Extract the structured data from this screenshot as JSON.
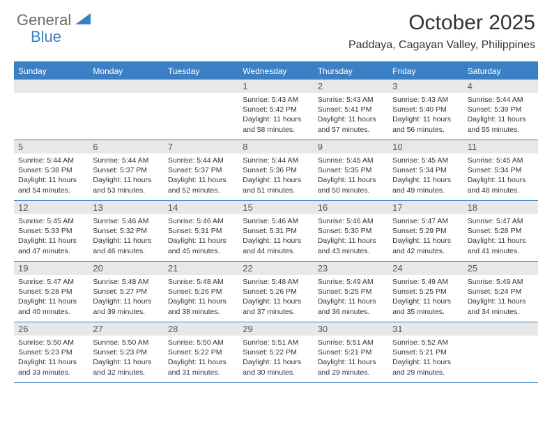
{
  "logo": {
    "text1": "General",
    "text2": "Blue"
  },
  "title": "October 2025",
  "location": "Paddaya, Cagayan Valley, Philippines",
  "colors": {
    "accent": "#3b7fc4",
    "header_text": "#ffffff",
    "date_bg": "#e8e8e8",
    "text": "#333333",
    "logo_gray": "#6b6b6b"
  },
  "day_names": [
    "Sunday",
    "Monday",
    "Tuesday",
    "Wednesday",
    "Thursday",
    "Friday",
    "Saturday"
  ],
  "weeks": [
    [
      null,
      null,
      null,
      {
        "d": "1",
        "sr": "5:43 AM",
        "ss": "5:42 PM",
        "dl": "11 hours and 58 minutes."
      },
      {
        "d": "2",
        "sr": "5:43 AM",
        "ss": "5:41 PM",
        "dl": "11 hours and 57 minutes."
      },
      {
        "d": "3",
        "sr": "5:43 AM",
        "ss": "5:40 PM",
        "dl": "11 hours and 56 minutes."
      },
      {
        "d": "4",
        "sr": "5:44 AM",
        "ss": "5:39 PM",
        "dl": "11 hours and 55 minutes."
      }
    ],
    [
      {
        "d": "5",
        "sr": "5:44 AM",
        "ss": "5:38 PM",
        "dl": "11 hours and 54 minutes."
      },
      {
        "d": "6",
        "sr": "5:44 AM",
        "ss": "5:37 PM",
        "dl": "11 hours and 53 minutes."
      },
      {
        "d": "7",
        "sr": "5:44 AM",
        "ss": "5:37 PM",
        "dl": "11 hours and 52 minutes."
      },
      {
        "d": "8",
        "sr": "5:44 AM",
        "ss": "5:36 PM",
        "dl": "11 hours and 51 minutes."
      },
      {
        "d": "9",
        "sr": "5:45 AM",
        "ss": "5:35 PM",
        "dl": "11 hours and 50 minutes."
      },
      {
        "d": "10",
        "sr": "5:45 AM",
        "ss": "5:34 PM",
        "dl": "11 hours and 49 minutes."
      },
      {
        "d": "11",
        "sr": "5:45 AM",
        "ss": "5:34 PM",
        "dl": "11 hours and 48 minutes."
      }
    ],
    [
      {
        "d": "12",
        "sr": "5:45 AM",
        "ss": "5:33 PM",
        "dl": "11 hours and 47 minutes."
      },
      {
        "d": "13",
        "sr": "5:46 AM",
        "ss": "5:32 PM",
        "dl": "11 hours and 46 minutes."
      },
      {
        "d": "14",
        "sr": "5:46 AM",
        "ss": "5:31 PM",
        "dl": "11 hours and 45 minutes."
      },
      {
        "d": "15",
        "sr": "5:46 AM",
        "ss": "5:31 PM",
        "dl": "11 hours and 44 minutes."
      },
      {
        "d": "16",
        "sr": "5:46 AM",
        "ss": "5:30 PM",
        "dl": "11 hours and 43 minutes."
      },
      {
        "d": "17",
        "sr": "5:47 AM",
        "ss": "5:29 PM",
        "dl": "11 hours and 42 minutes."
      },
      {
        "d": "18",
        "sr": "5:47 AM",
        "ss": "5:28 PM",
        "dl": "11 hours and 41 minutes."
      }
    ],
    [
      {
        "d": "19",
        "sr": "5:47 AM",
        "ss": "5:28 PM",
        "dl": "11 hours and 40 minutes."
      },
      {
        "d": "20",
        "sr": "5:48 AM",
        "ss": "5:27 PM",
        "dl": "11 hours and 39 minutes."
      },
      {
        "d": "21",
        "sr": "5:48 AM",
        "ss": "5:26 PM",
        "dl": "11 hours and 38 minutes."
      },
      {
        "d": "22",
        "sr": "5:48 AM",
        "ss": "5:26 PM",
        "dl": "11 hours and 37 minutes."
      },
      {
        "d": "23",
        "sr": "5:49 AM",
        "ss": "5:25 PM",
        "dl": "11 hours and 36 minutes."
      },
      {
        "d": "24",
        "sr": "5:49 AM",
        "ss": "5:25 PM",
        "dl": "11 hours and 35 minutes."
      },
      {
        "d": "25",
        "sr": "5:49 AM",
        "ss": "5:24 PM",
        "dl": "11 hours and 34 minutes."
      }
    ],
    [
      {
        "d": "26",
        "sr": "5:50 AM",
        "ss": "5:23 PM",
        "dl": "11 hours and 33 minutes."
      },
      {
        "d": "27",
        "sr": "5:50 AM",
        "ss": "5:23 PM",
        "dl": "11 hours and 32 minutes."
      },
      {
        "d": "28",
        "sr": "5:50 AM",
        "ss": "5:22 PM",
        "dl": "11 hours and 31 minutes."
      },
      {
        "d": "29",
        "sr": "5:51 AM",
        "ss": "5:22 PM",
        "dl": "11 hours and 30 minutes."
      },
      {
        "d": "30",
        "sr": "5:51 AM",
        "ss": "5:21 PM",
        "dl": "11 hours and 29 minutes."
      },
      {
        "d": "31",
        "sr": "5:52 AM",
        "ss": "5:21 PM",
        "dl": "11 hours and 29 minutes."
      },
      null
    ]
  ],
  "labels": {
    "sunrise": "Sunrise:",
    "sunset": "Sunset:",
    "daylight": "Daylight:"
  }
}
